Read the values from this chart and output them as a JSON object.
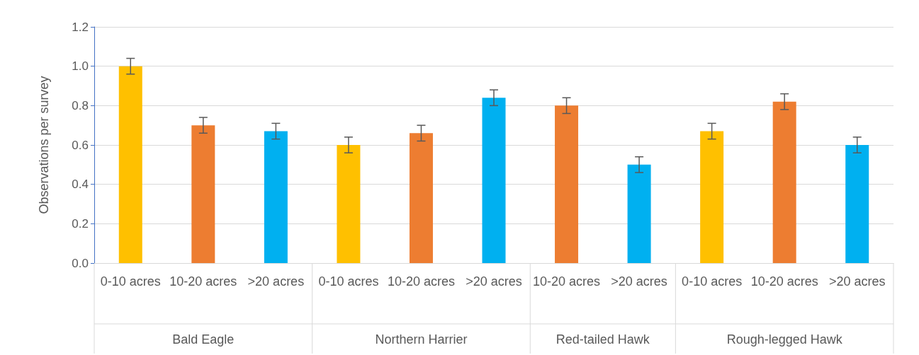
{
  "chart_data": {
    "type": "bar",
    "ylabel": "Observations per survey",
    "categories": [
      "0-10 acres",
      "10-20 acres",
      ">20 acres",
      "0-10 acres",
      "10-20 acres",
      ">20 acres",
      "10-20 acres",
      ">20 acres",
      "0-10 acres",
      "10-20 acres",
      ">20 acres"
    ],
    "values": [
      1.0,
      0.7,
      0.67,
      0.6,
      0.66,
      0.84,
      0.8,
      0.5,
      0.67,
      0.82,
      0.6
    ],
    "errors": [
      0.04,
      0.04,
      0.04,
      0.04,
      0.04,
      0.04,
      0.04,
      0.04,
      0.04,
      0.04,
      0.04
    ],
    "colors": [
      "#ffc000",
      "#ed7d31",
      "#00b0f0",
      "#ffc000",
      "#ed7d31",
      "#00b0f0",
      "#ed7d31",
      "#00b0f0",
      "#ffc000",
      "#ed7d31",
      "#00b0f0"
    ],
    "ylim": [
      0,
      1.2
    ],
    "yticks": [
      {
        "value": 0,
        "label": "0.0"
      },
      0.2,
      0.4,
      0.6,
      0.8,
      {
        "value": 1,
        "label": "1.0"
      },
      1.2
    ],
    "grid": "y",
    "annotations": [
      "Bald Eagle",
      "Northern Harrier",
      "Red-tailed Hawk",
      "Rough-legged Hawk"
    ]
  }
}
